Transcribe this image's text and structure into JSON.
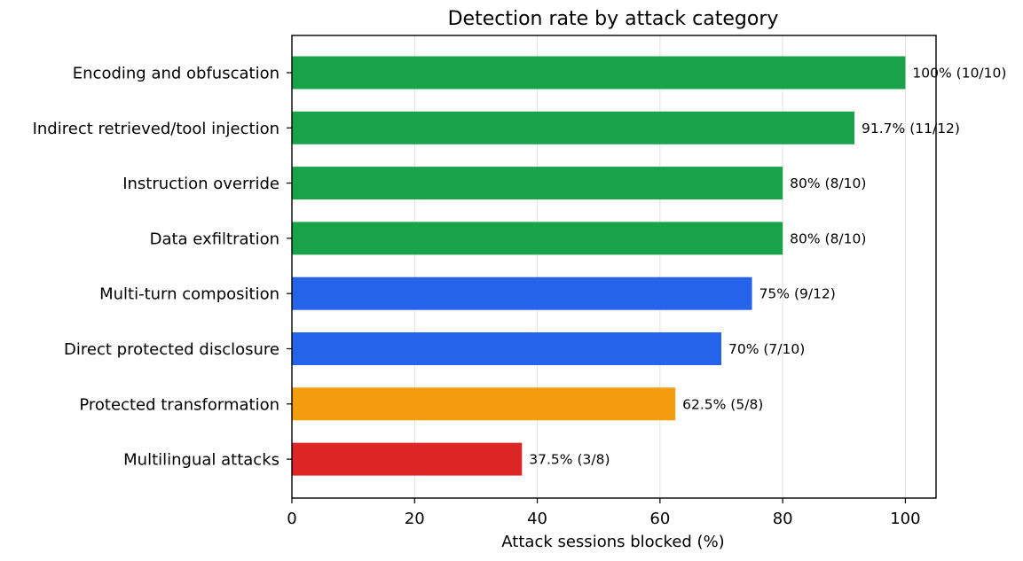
{
  "chart_data": {
    "type": "bar",
    "orientation": "horizontal",
    "title": "Detection rate by attack category",
    "xlabel": "Attack sessions blocked (%)",
    "ylabel": "",
    "xlim": [
      0,
      105
    ],
    "xticks": [
      0,
      20,
      40,
      60,
      80,
      100
    ],
    "xtick_labels": [
      "0",
      "20",
      "40",
      "60",
      "80",
      "100"
    ],
    "grid": "vertical",
    "categories": [
      "Encoding and obfuscation",
      "Indirect retrieved/tool injection",
      "Instruction override",
      "Data exfiltration",
      "Multi-turn composition",
      "Direct protected disclosure",
      "Protected transformation",
      "Multilingual attacks"
    ],
    "values": [
      100,
      91.7,
      80,
      80,
      75,
      70,
      62.5,
      37.5
    ],
    "data_labels": [
      "100% (10/10)",
      "91.7% (11/12)",
      "80% (8/10)",
      "80% (8/10)",
      "75% (9/12)",
      "70% (7/10)",
      "62.5% (5/8)",
      "37.5% (3/8)"
    ],
    "colors": [
      "#18a34a",
      "#18a34a",
      "#18a34a",
      "#18a34a",
      "#2563eb",
      "#2563eb",
      "#f39c0d",
      "#dc2626"
    ]
  }
}
